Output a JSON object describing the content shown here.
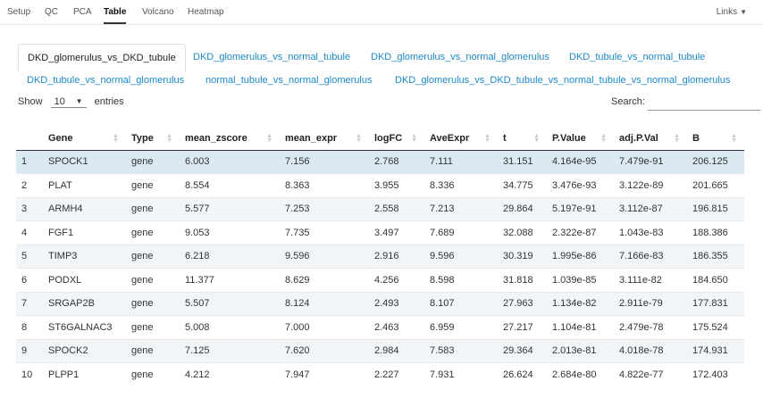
{
  "navbar": {
    "items": [
      "Setup",
      "QC",
      "PCA",
      "Table",
      "Volcano",
      "Heatmap"
    ],
    "active": "Table",
    "links_label": "Links"
  },
  "tabs": {
    "items": [
      "DKD_glomerulus_vs_DKD_tubule",
      "DKD_glomerulus_vs_normal_tubule",
      "DKD_glomerulus_vs_normal_glomerulus",
      "DKD_tubule_vs_normal_tubule",
      "DKD_tubule_vs_normal_glomerulus",
      "normal_tubule_vs_normal_glomerulus",
      "DKD_glomerulus_vs_DKD_tubule_vs_normal_tubule_vs_normal_glomerulus"
    ],
    "active_index": 0
  },
  "controls": {
    "show_label": "Show",
    "entries_value": "10",
    "entries_label": "entries",
    "search_label": "Search:",
    "search_value": ""
  },
  "table": {
    "columns": [
      "",
      "Gene",
      "Type",
      "mean_zscore",
      "mean_expr",
      "logFC",
      "AveExpr",
      "t",
      "P.Value",
      "adj.P.Val",
      "B"
    ],
    "rows": [
      [
        "1",
        "SPOCK1",
        "gene",
        "6.003",
        "7.156",
        "2.768",
        "7.111",
        "31.151",
        "4.164e-95",
        "7.479e-91",
        "206.125"
      ],
      [
        "2",
        "PLAT",
        "gene",
        "8.554",
        "8.363",
        "3.955",
        "8.336",
        "34.775",
        "3.476e-93",
        "3.122e-89",
        "201.665"
      ],
      [
        "3",
        "ARMH4",
        "gene",
        "5.577",
        "7.253",
        "2.558",
        "7.213",
        "29.864",
        "5.197e-91",
        "3.112e-87",
        "196.815"
      ],
      [
        "4",
        "FGF1",
        "gene",
        "9.053",
        "7.735",
        "3.497",
        "7.689",
        "32.088",
        "2.322e-87",
        "1.043e-83",
        "188.386"
      ],
      [
        "5",
        "TIMP3",
        "gene",
        "6.218",
        "9.596",
        "2.916",
        "9.596",
        "30.319",
        "1.995e-86",
        "7.166e-83",
        "186.355"
      ],
      [
        "6",
        "PODXL",
        "gene",
        "11.377",
        "8.629",
        "4.256",
        "8.598",
        "31.818",
        "1.039e-85",
        "3.111e-82",
        "184.650"
      ],
      [
        "7",
        "SRGAP2B",
        "gene",
        "5.507",
        "8.124",
        "2.493",
        "8.107",
        "27.963",
        "1.134e-82",
        "2.911e-79",
        "177.831"
      ],
      [
        "8",
        "ST6GALNAC3",
        "gene",
        "5.008",
        "7.000",
        "2.463",
        "6.959",
        "27.217",
        "1.104e-81",
        "2.479e-78",
        "175.524"
      ],
      [
        "9",
        "SPOCK2",
        "gene",
        "7.125",
        "7.620",
        "2.984",
        "7.583",
        "29.364",
        "2.013e-81",
        "4.018e-78",
        "174.931"
      ],
      [
        "10",
        "PLPP1",
        "gene",
        "4.212",
        "7.947",
        "2.227",
        "7.931",
        "26.624",
        "2.684e-80",
        "4.822e-77",
        "172.403"
      ]
    ]
  },
  "colors": {
    "link": "#1b88c9",
    "row_stripe": "#f2f5f8",
    "row_selected": "#dbe9f3"
  }
}
